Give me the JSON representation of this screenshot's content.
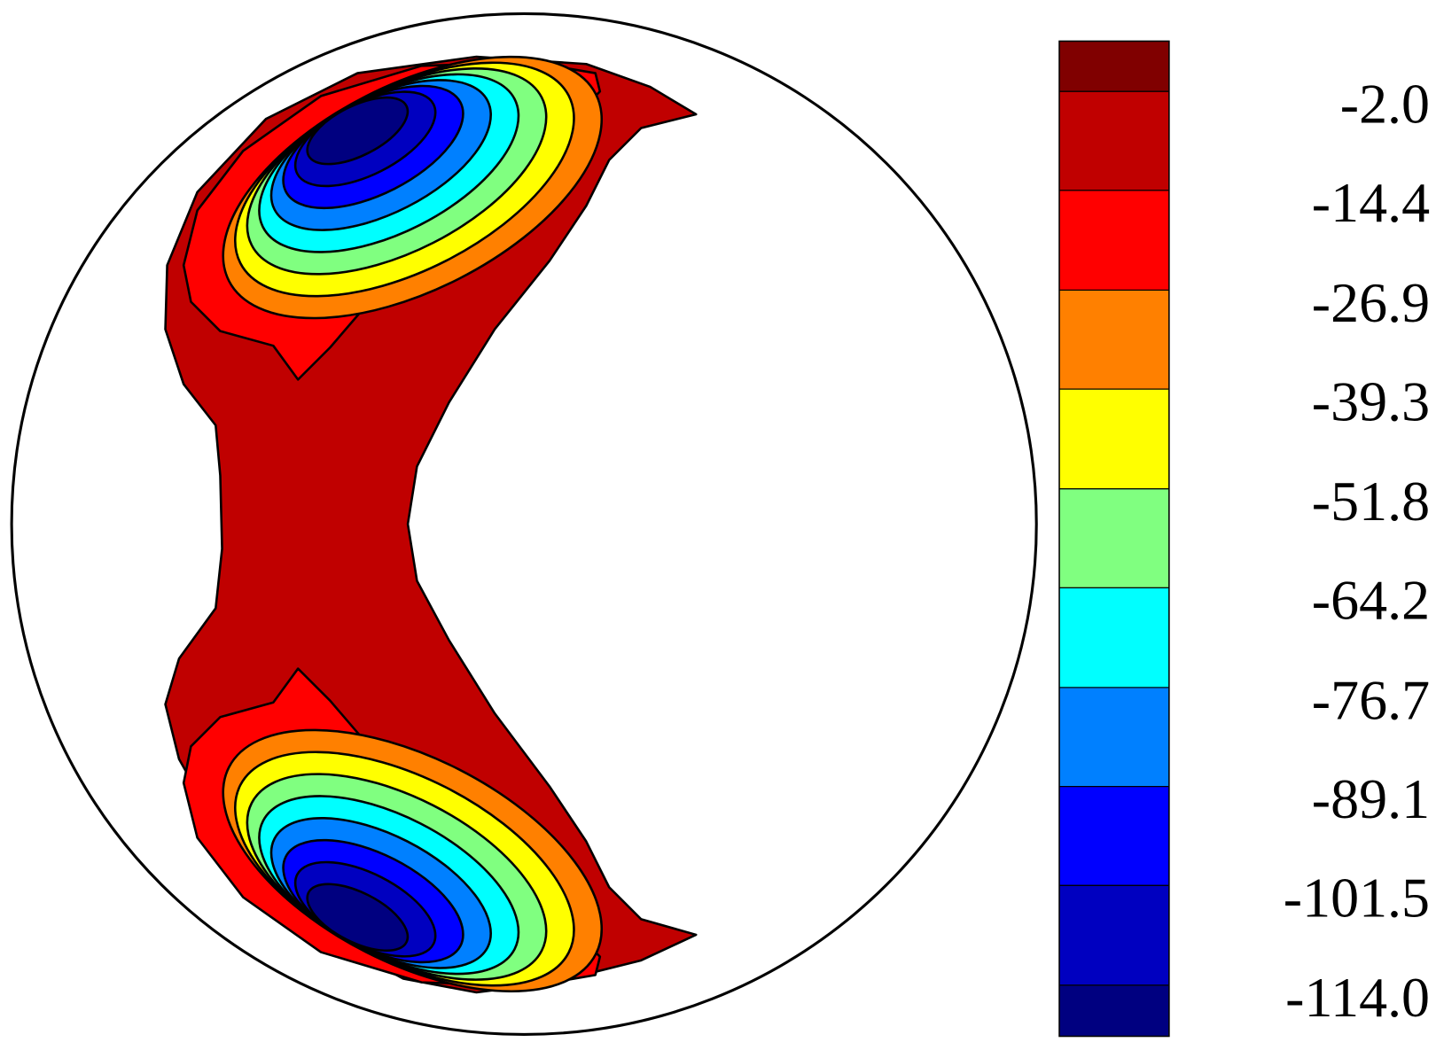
{
  "chart_data": {
    "type": "contour",
    "colorbar": {
      "ylim": [
        -120.4,
        4.3
      ],
      "ticks": [
        {
          "value": -2,
          "label": "-2.0"
        },
        -14.4,
        -26.9,
        -39.3,
        -51.8,
        -64.2,
        -76.7,
        -89.1,
        -101.5,
        {
          "value": -114,
          "label": "-114.0"
        }
      ],
      "colors": [
        "#800000",
        "#c00000",
        "#ff0000",
        "#ff8000",
        "#ffff00",
        "#80ff80",
        "#00ffff",
        "#0080ff",
        "#0000ff",
        "#0000c0",
        "#000080"
      ]
    }
  }
}
